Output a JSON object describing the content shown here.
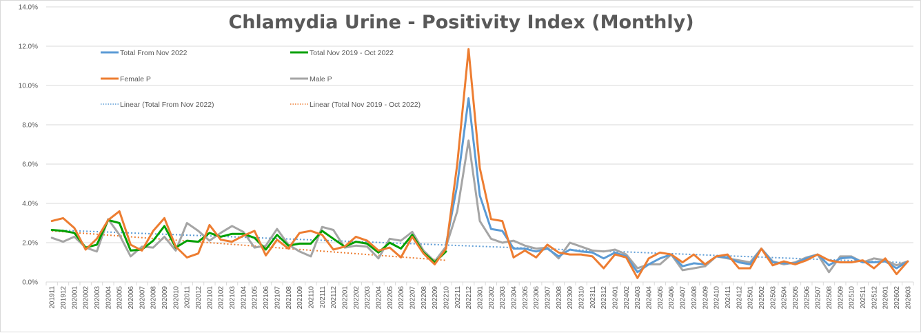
{
  "chart_data": {
    "type": "line",
    "title": "Chlamydia Urine - Positivity Index (Monthly)",
    "xlabel": "",
    "ylabel": "",
    "ylim": [
      0,
      14
    ],
    "y_unit": "%",
    "yticks": [
      "0.0%",
      "2.0%",
      "4.0%",
      "6.0%",
      "8.0%",
      "10.0%",
      "12.0%",
      "14.0%"
    ],
    "grid": true,
    "legend_position": "top-left (inside plot, 3 rows x 2 columns)",
    "categories": [
      "201911",
      "201912",
      "202001",
      "202002",
      "202003",
      "202004",
      "202005",
      "202006",
      "202007",
      "202008",
      "202009",
      "202010",
      "202011",
      "202012",
      "202101",
      "202102",
      "202103",
      "202104",
      "202105",
      "202106",
      "202107",
      "202108",
      "202109",
      "202110",
      "202111",
      "202112",
      "202201",
      "202202",
      "202203",
      "202204",
      "202205",
      "202206",
      "202207",
      "202208",
      "202209",
      "202210",
      "202211",
      "202212",
      "202301",
      "202302",
      "202303",
      "202304",
      "202305",
      "202306",
      "202307",
      "202308",
      "202309",
      "202310",
      "202311",
      "202312",
      "202401",
      "202402",
      "202403",
      "202404",
      "202405",
      "202406",
      "202407",
      "202408",
      "202409",
      "202410",
      "202411",
      "202412",
      "202501",
      "202502",
      "202503",
      "202504",
      "202505",
      "202506",
      "202507",
      "202508",
      "202509",
      "202510",
      "202511",
      "202512",
      "202601",
      "202602",
      "202603"
    ],
    "series": [
      {
        "name": "Total From Nov 2022",
        "color": "#5b9bd5",
        "style": "solid",
        "start": "202210",
        "values": [
          1.9,
          4.95,
          9.35,
          4.4,
          2.7,
          2.6,
          1.7,
          1.7,
          1.55,
          1.7,
          1.3,
          1.65,
          1.55,
          1.5,
          1.2,
          1.5,
          1.3,
          0.5,
          0.9,
          1.2,
          1.4,
          0.8,
          0.95,
          0.9,
          1.3,
          1.25,
          1.0,
          0.9,
          1.7,
          1.0,
          0.95,
          0.95,
          1.2,
          1.4,
          0.85,
          1.2,
          1.25,
          1.0,
          1.0,
          1.05,
          0.7,
          1.05
        ]
      },
      {
        "name": "Total Nov 2019 - Oct 2022",
        "color": "#00a000",
        "style": "solid",
        "start": "201911",
        "values": [
          2.65,
          2.6,
          2.5,
          1.75,
          1.9,
          3.15,
          3.0,
          1.6,
          1.65,
          2.1,
          2.85,
          1.75,
          2.1,
          2.05,
          2.5,
          2.3,
          2.45,
          2.45,
          2.25,
          1.65,
          2.4,
          1.85,
          1.95,
          1.95,
          2.6,
          2.2,
          1.8,
          2.05,
          1.95,
          1.5,
          2.0,
          1.7,
          2.4,
          1.5,
          1.0,
          1.55
        ]
      },
      {
        "name": "Female P",
        "color": "#ed7d31",
        "style": "solid",
        "start": "201911",
        "values": [
          3.1,
          3.25,
          2.75,
          1.65,
          2.2,
          3.15,
          3.6,
          1.9,
          1.6,
          2.6,
          3.25,
          1.8,
          1.25,
          1.45,
          2.9,
          2.15,
          2.05,
          2.35,
          2.6,
          1.35,
          2.15,
          1.7,
          2.5,
          2.6,
          2.4,
          1.65,
          1.8,
          2.3,
          2.1,
          1.6,
          1.75,
          1.25,
          2.3,
          1.45,
          0.9,
          1.7,
          6.0,
          11.85,
          5.8,
          3.2,
          3.1,
          1.25,
          1.6,
          1.25,
          1.9,
          1.5,
          1.4,
          1.4,
          1.3,
          0.7,
          1.4,
          1.25,
          0.2,
          1.2,
          1.5,
          1.4,
          1.0,
          1.4,
          0.9,
          1.3,
          1.4,
          0.7,
          0.7,
          1.7,
          0.85,
          1.05,
          0.9,
          1.1,
          1.4,
          1.1,
          1.0,
          1.0,
          1.1,
          0.7,
          1.2,
          0.4,
          1.05
        ]
      },
      {
        "name": "Male P",
        "color": "#a5a5a5",
        "style": "solid",
        "start": "201911",
        "values": [
          2.25,
          2.05,
          2.3,
          1.75,
          1.55,
          3.2,
          2.4,
          1.3,
          1.8,
          1.75,
          2.3,
          1.6,
          3.0,
          2.6,
          2.1,
          2.5,
          2.85,
          2.55,
          1.75,
          1.85,
          2.7,
          1.9,
          1.55,
          1.3,
          2.8,
          2.65,
          1.75,
          1.85,
          1.8,
          1.2,
          2.2,
          2.1,
          2.55,
          1.6,
          1.05,
          1.8,
          3.6,
          7.2,
          3.1,
          2.2,
          2.0,
          2.1,
          1.85,
          1.7,
          1.75,
          1.2,
          2.0,
          1.8,
          1.6,
          1.55,
          1.65,
          1.4,
          0.7,
          0.9,
          0.9,
          1.4,
          0.6,
          0.7,
          0.8,
          1.3,
          1.2,
          1.1,
          1.0,
          1.7,
          1.05,
          0.9,
          1.0,
          1.25,
          1.4,
          0.5,
          1.3,
          1.3,
          1.0,
          1.2,
          1.1,
          0.85,
          1.05
        ]
      },
      {
        "name": "Linear (Total From Nov 2022)",
        "color": "#5b9bd5",
        "style": "dotted",
        "trend": {
          "from": "201911",
          "to": "202603",
          "start_value": 2.65,
          "end_value": 0.98
        }
      },
      {
        "name": "Linear (Total Nov 2019 - Oct 2022)",
        "color": "#ed7d31",
        "style": "dotted",
        "trend": {
          "from": "201911",
          "to": "202210",
          "start_value": 2.6,
          "end_value": 1.1
        }
      }
    ]
  }
}
